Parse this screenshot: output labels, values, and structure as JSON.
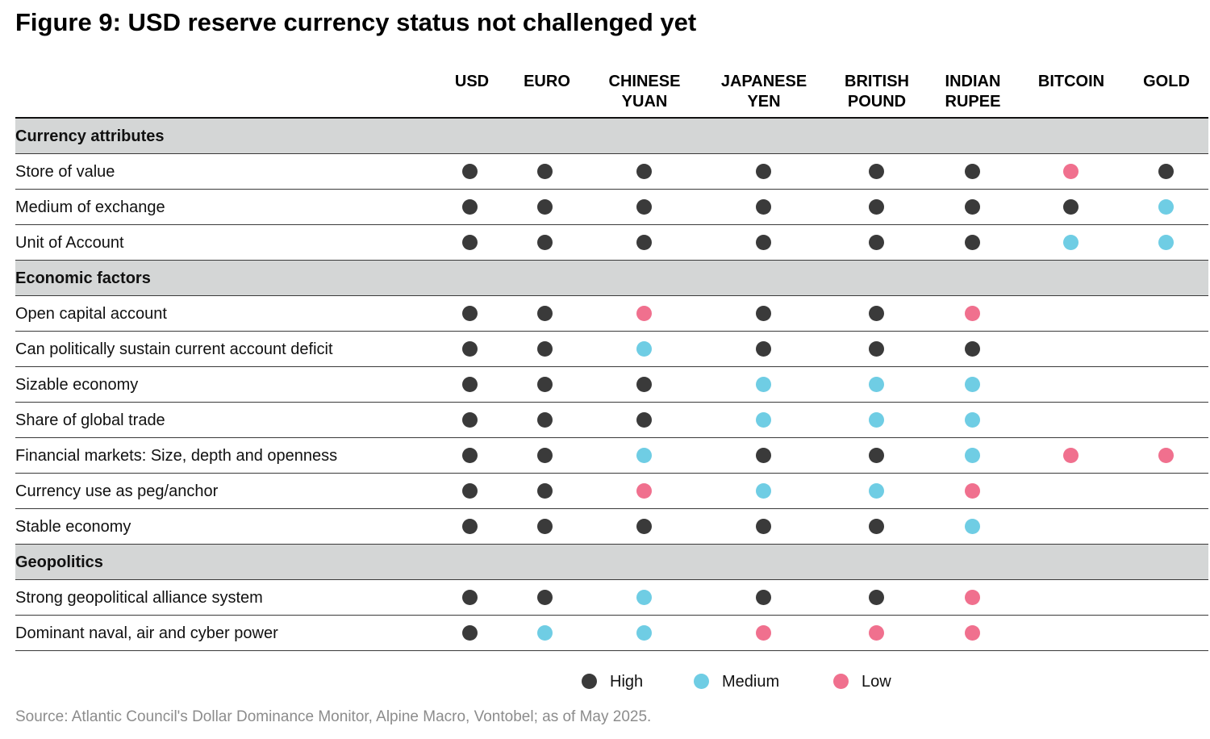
{
  "title": "Figure 9: USD reserve currency status not challenged yet",
  "colors": {
    "High": "#3a3a3a",
    "Medium": "#6fcde4",
    "Low": "#f0708e"
  },
  "chart_data": {
    "type": "table",
    "columns": [
      "USD",
      "EURO",
      "CHINESE\nYUAN",
      "JAPANESE\nYEN",
      "BRITISH\nPOUND",
      "INDIAN\nRUPEE",
      "BITCOIN",
      "GOLD"
    ],
    "rows": [
      {
        "section": "Currency attributes"
      },
      {
        "label": "Store of value",
        "values": [
          "High",
          "High",
          "High",
          "High",
          "High",
          "High",
          "Low",
          "High"
        ]
      },
      {
        "label": "Medium of exchange",
        "values": [
          "High",
          "High",
          "High",
          "High",
          "High",
          "High",
          "High",
          "Medium"
        ]
      },
      {
        "label": "Unit of Account",
        "values": [
          "High",
          "High",
          "High",
          "High",
          "High",
          "High",
          "Medium",
          "Medium"
        ]
      },
      {
        "section": "Economic factors"
      },
      {
        "label": "Open capital account",
        "values": [
          "High",
          "High",
          "Low",
          "High",
          "High",
          "Low",
          null,
          null
        ]
      },
      {
        "label": "Can politically sustain current account deficit",
        "values": [
          "High",
          "High",
          "Medium",
          "High",
          "High",
          "High",
          null,
          null
        ]
      },
      {
        "label": "Sizable economy",
        "values": [
          "High",
          "High",
          "High",
          "Medium",
          "Medium",
          "Medium",
          null,
          null
        ]
      },
      {
        "label": "Share of global trade",
        "values": [
          "High",
          "High",
          "High",
          "Medium",
          "Medium",
          "Medium",
          null,
          null
        ]
      },
      {
        "label": "Financial markets: Size, depth and openness",
        "values": [
          "High",
          "High",
          "Medium",
          "High",
          "High",
          "Medium",
          "Low",
          "Low"
        ]
      },
      {
        "label": "Currency use as peg/anchor",
        "values": [
          "High",
          "High",
          "Low",
          "Medium",
          "Medium",
          "Low",
          null,
          null
        ]
      },
      {
        "label": "Stable economy",
        "values": [
          "High",
          "High",
          "High",
          "High",
          "High",
          "Medium",
          null,
          null
        ]
      },
      {
        "section": "Geopolitics"
      },
      {
        "label": "Strong geopolitical alliance system",
        "values": [
          "High",
          "High",
          "Medium",
          "High",
          "High",
          "Low",
          null,
          null
        ]
      },
      {
        "label": "Dominant naval, air and cyber power",
        "values": [
          "High",
          "Medium",
          "Medium",
          "Low",
          "Low",
          "Low",
          null,
          null
        ]
      }
    ],
    "legend": [
      "High",
      "Medium",
      "Low"
    ]
  },
  "source": "Source: Atlantic Council's Dollar Dominance Monitor, Alpine Macro, Vontobel; as of May 2025."
}
